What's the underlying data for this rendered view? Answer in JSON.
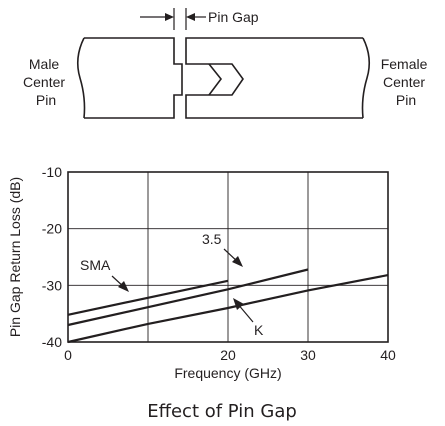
{
  "diagram": {
    "pin_gap_label": "Pin Gap",
    "male_label": [
      "Male",
      "Center",
      "Pin"
    ],
    "female_label": [
      "Female",
      "Center",
      "Pin"
    ]
  },
  "chart_data": {
    "type": "line",
    "xlabel": "Frequency (GHz)",
    "ylabel": "Pin Gap Return Loss (dB)",
    "xlim": [
      0,
      40
    ],
    "ylim": [
      -40,
      -10
    ],
    "x_ticks": [
      0,
      10,
      20,
      30,
      40
    ],
    "x_tick_labels": [
      "0",
      "",
      "20",
      "30",
      "40"
    ],
    "y_ticks": [
      -40,
      -30,
      -20,
      -10
    ],
    "y_tick_labels": [
      "-40",
      "-30",
      "-20",
      "-10"
    ],
    "grid": true,
    "series": [
      {
        "name": "SMA",
        "x": [
          0,
          20
        ],
        "y": [
          -35.2,
          -29.2
        ]
      },
      {
        "name": "3.5",
        "x": [
          0,
          20,
          30
        ],
        "y": [
          -37.0,
          -30.7,
          -27.2
        ]
      },
      {
        "name": "K",
        "x": [
          0,
          10,
          20,
          30,
          40
        ],
        "y": [
          -40.0,
          -36.8,
          -34.0,
          -30.9,
          -28.2
        ]
      }
    ],
    "annotations": [
      {
        "text": "SMA",
        "series": "SMA"
      },
      {
        "text": "3.5",
        "series": "3.5"
      },
      {
        "text": "K",
        "series": "K"
      }
    ]
  },
  "caption": "Effect of Pin Gap"
}
